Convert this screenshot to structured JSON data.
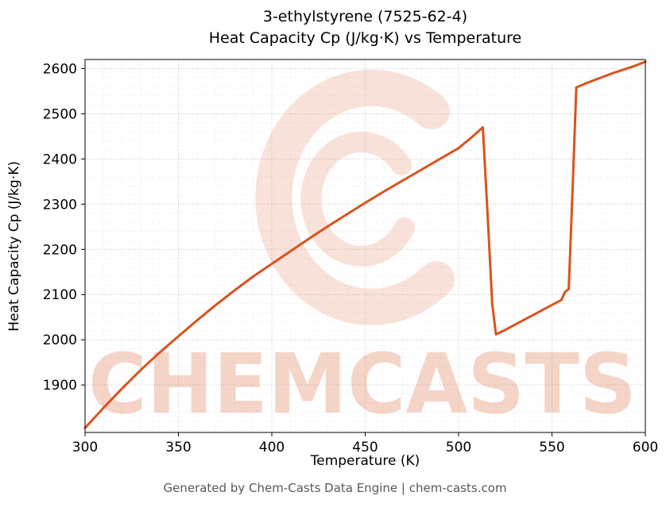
{
  "figure": {
    "background": "#ffffff",
    "footer": "Generated by Chem-Casts Data Engine | chem-casts.com",
    "footer_color": "#595959"
  },
  "watermark": {
    "text": "CHEMCASTS",
    "logo_icon": "chemcasts-swirl-c-logo",
    "color": "#d9531e",
    "text_opacity": 0.24,
    "logo_opacity": 0.17
  },
  "chart_data": {
    "type": "line",
    "title_line1": "3-ethylstyrene (7525-62-4)",
    "title_line2": "Heat Capacity Cp (J/kg·K) vs Temperature",
    "xlabel": "Temperature (K)",
    "ylabel": "Heat Capacity Cp (J/kg·K)",
    "xlim": [
      300,
      600
    ],
    "ylim": [
      1795,
      2620
    ],
    "x_ticks": [
      300,
      350,
      400,
      450,
      500,
      550,
      600
    ],
    "y_ticks": [
      1900,
      2000,
      2100,
      2200,
      2300,
      2400,
      2500,
      2600
    ],
    "x_minor_step": 10,
    "y_minor_step": 20,
    "grid": true,
    "legend": "none",
    "line_color": "#d9531e",
    "line_width": 3,
    "series": [
      {
        "name": "Heat Capacity Cp (J/kg·K)",
        "points": [
          [
            300,
            1805
          ],
          [
            310,
            1850
          ],
          [
            320,
            1893
          ],
          [
            330,
            1934
          ],
          [
            340,
            1972
          ],
          [
            350,
            2008
          ],
          [
            360,
            2043
          ],
          [
            370,
            2077
          ],
          [
            380,
            2109
          ],
          [
            390,
            2140
          ],
          [
            400,
            2168
          ],
          [
            410,
            2196
          ],
          [
            420,
            2224
          ],
          [
            430,
            2251
          ],
          [
            440,
            2277
          ],
          [
            450,
            2303
          ],
          [
            460,
            2328
          ],
          [
            470,
            2352
          ],
          [
            480,
            2376
          ],
          [
            490,
            2400
          ],
          [
            500,
            2424
          ],
          [
            507,
            2448
          ],
          [
            513,
            2470
          ],
          [
            516,
            2240
          ],
          [
            518,
            2080
          ],
          [
            520,
            2012
          ],
          [
            525,
            2022
          ],
          [
            530,
            2033
          ],
          [
            535,
            2044
          ],
          [
            540,
            2055
          ],
          [
            545,
            2066
          ],
          [
            550,
            2077
          ],
          [
            555,
            2088
          ],
          [
            557,
            2106
          ],
          [
            559,
            2112
          ],
          [
            561,
            2330
          ],
          [
            563,
            2558
          ],
          [
            568,
            2567
          ],
          [
            575,
            2578
          ],
          [
            582,
            2589
          ],
          [
            590,
            2600
          ],
          [
            595,
            2607
          ],
          [
            600,
            2615
          ]
        ]
      }
    ]
  }
}
